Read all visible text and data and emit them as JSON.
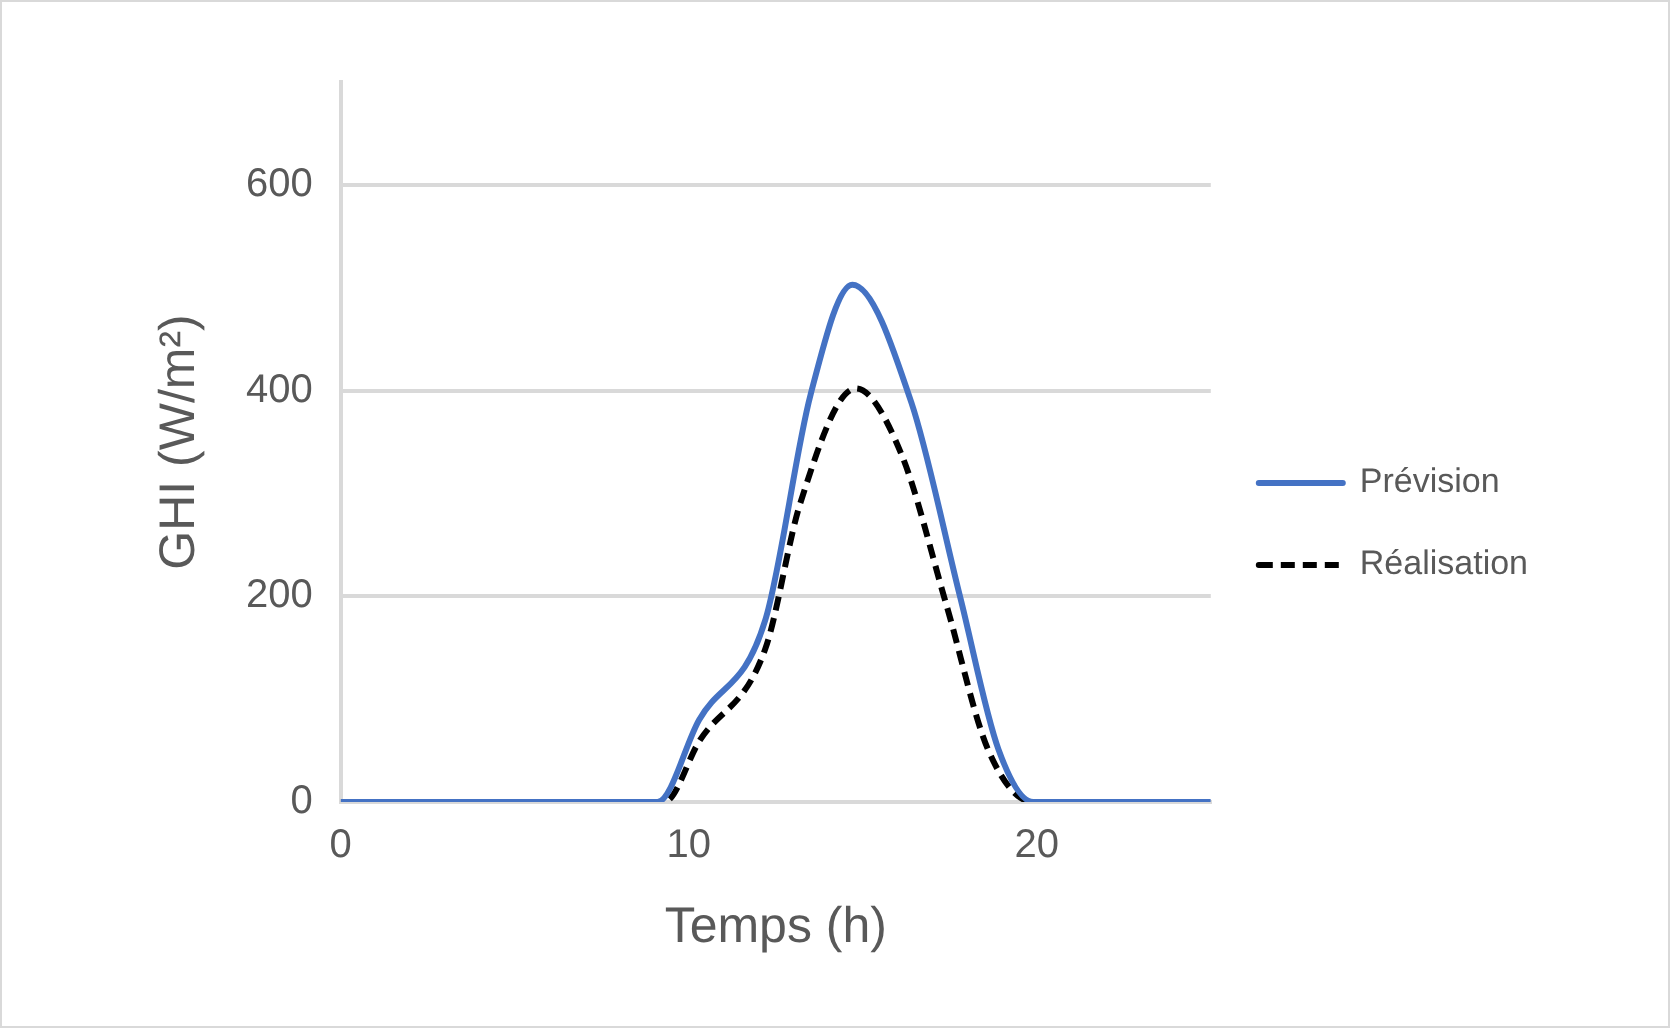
{
  "chart_data": {
    "type": "line",
    "xlabel": "Temps (h)",
    "ylabel": "GHI (W/m²)",
    "xlim": [
      0,
      25
    ],
    "xticks": [
      0,
      10,
      20
    ],
    "ylim": [
      0,
      700
    ],
    "yticks": [
      0,
      200,
      400,
      600
    ],
    "grid": "y",
    "legend": "right",
    "marker": "none",
    "series": [
      {
        "name": "Prévision",
        "color": "#4472c4",
        "line_style": "solid",
        "x": [
          0,
          9.1,
          10.3,
          12.2,
          13.5,
          14.7,
          16.4,
          17.8,
          18.9,
          19.9,
          25
        ],
        "values": [
          0,
          0,
          80,
          177,
          396,
          503,
          388,
          199,
          51,
          0,
          0
        ]
      },
      {
        "name": "Réalisation",
        "color": "#000000",
        "line_style": "dashed",
        "x": [
          0,
          9.3,
          10.3,
          12.2,
          13.2,
          14.8,
          16.1,
          17.4,
          18.6,
          19.9,
          23.9
        ],
        "values": [
          0,
          0,
          59,
          149,
          290,
          402,
          339,
          192,
          51,
          0,
          0
        ]
      }
    ]
  }
}
